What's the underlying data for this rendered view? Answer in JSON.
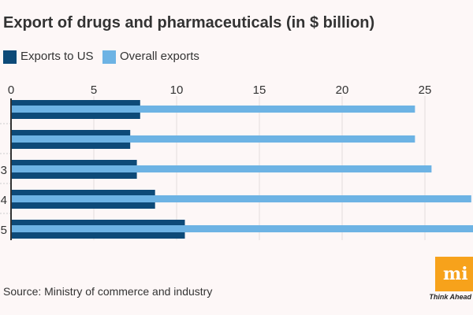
{
  "chart_data": {
    "type": "bar",
    "orientation": "horizontal",
    "title": "Export of drugs and pharmaceuticals (in $ billion)",
    "categories": [
      "",
      "",
      "3",
      "4",
      "5"
    ],
    "series": [
      {
        "name": "Exports to US",
        "color": "#0d4a78",
        "values": [
          7.8,
          7.2,
          7.6,
          8.7,
          10.5
        ]
      },
      {
        "name": "Overall exports",
        "color": "#6db3e4",
        "values": [
          24.4,
          24.4,
          25.4,
          27.8,
          28.5
        ]
      }
    ],
    "xticks": [
      0,
      5,
      10,
      15,
      20,
      25
    ],
    "xlim": [
      0,
      28
    ],
    "grid": true,
    "legend": "top-left"
  },
  "legend": {
    "us_label": "Exports to US",
    "overall_label": "Overall exports"
  },
  "source": "Source: Ministry of commerce and industry",
  "logo": {
    "text": "mint",
    "tagline": "Think Ahead"
  }
}
